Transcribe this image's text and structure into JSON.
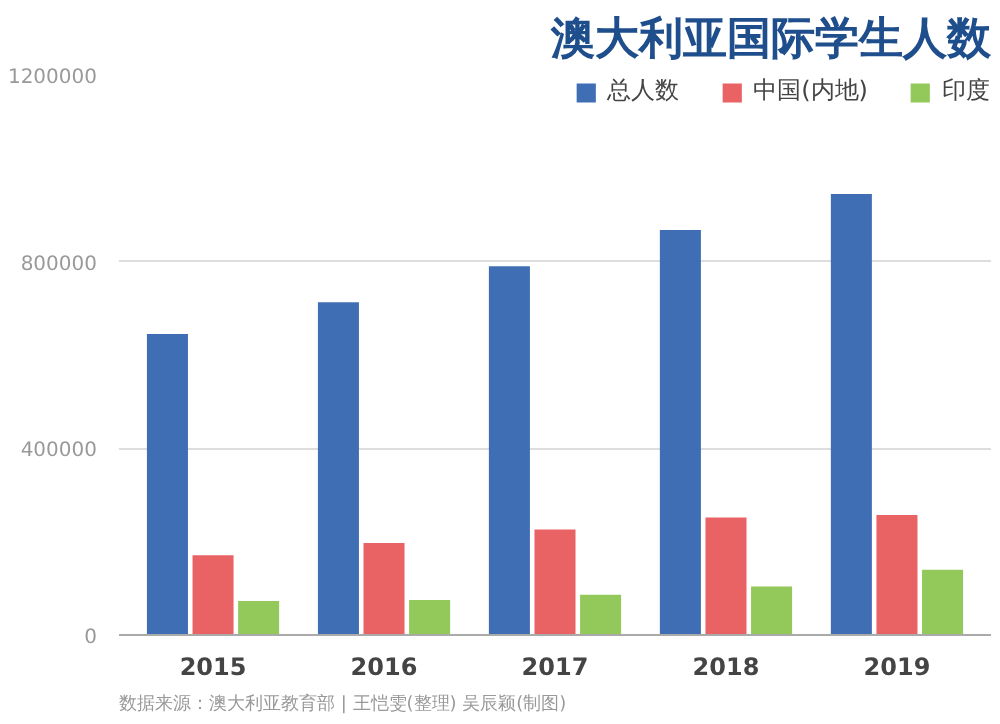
{
  "chart_data": {
    "type": "bar",
    "title": "澳大利亚国际学生人数",
    "categories": [
      "2015",
      "2016",
      "2017",
      "2018",
      "2019"
    ],
    "series": [
      {
        "name": "总人数",
        "color": "#3f6eb5",
        "values": [
          645000,
          713000,
          790000,
          868000,
          945000
        ]
      },
      {
        "name": "中国(内地)",
        "color": "#e96264",
        "values": [
          171000,
          197000,
          226000,
          252000,
          257000
        ]
      },
      {
        "name": "印度",
        "color": "#92c95a",
        "values": [
          73000,
          75000,
          86000,
          104000,
          140000
        ]
      }
    ],
    "ylim": [
      0,
      1200000
    ],
    "yticks": [
      0,
      400000,
      800000,
      1200000
    ],
    "grid": "y",
    "legend": "top right",
    "annotations": [
      "数据来源：澳大利亚教育部 | 王恺雯(整理) 吴辰颖(制图)"
    ]
  }
}
